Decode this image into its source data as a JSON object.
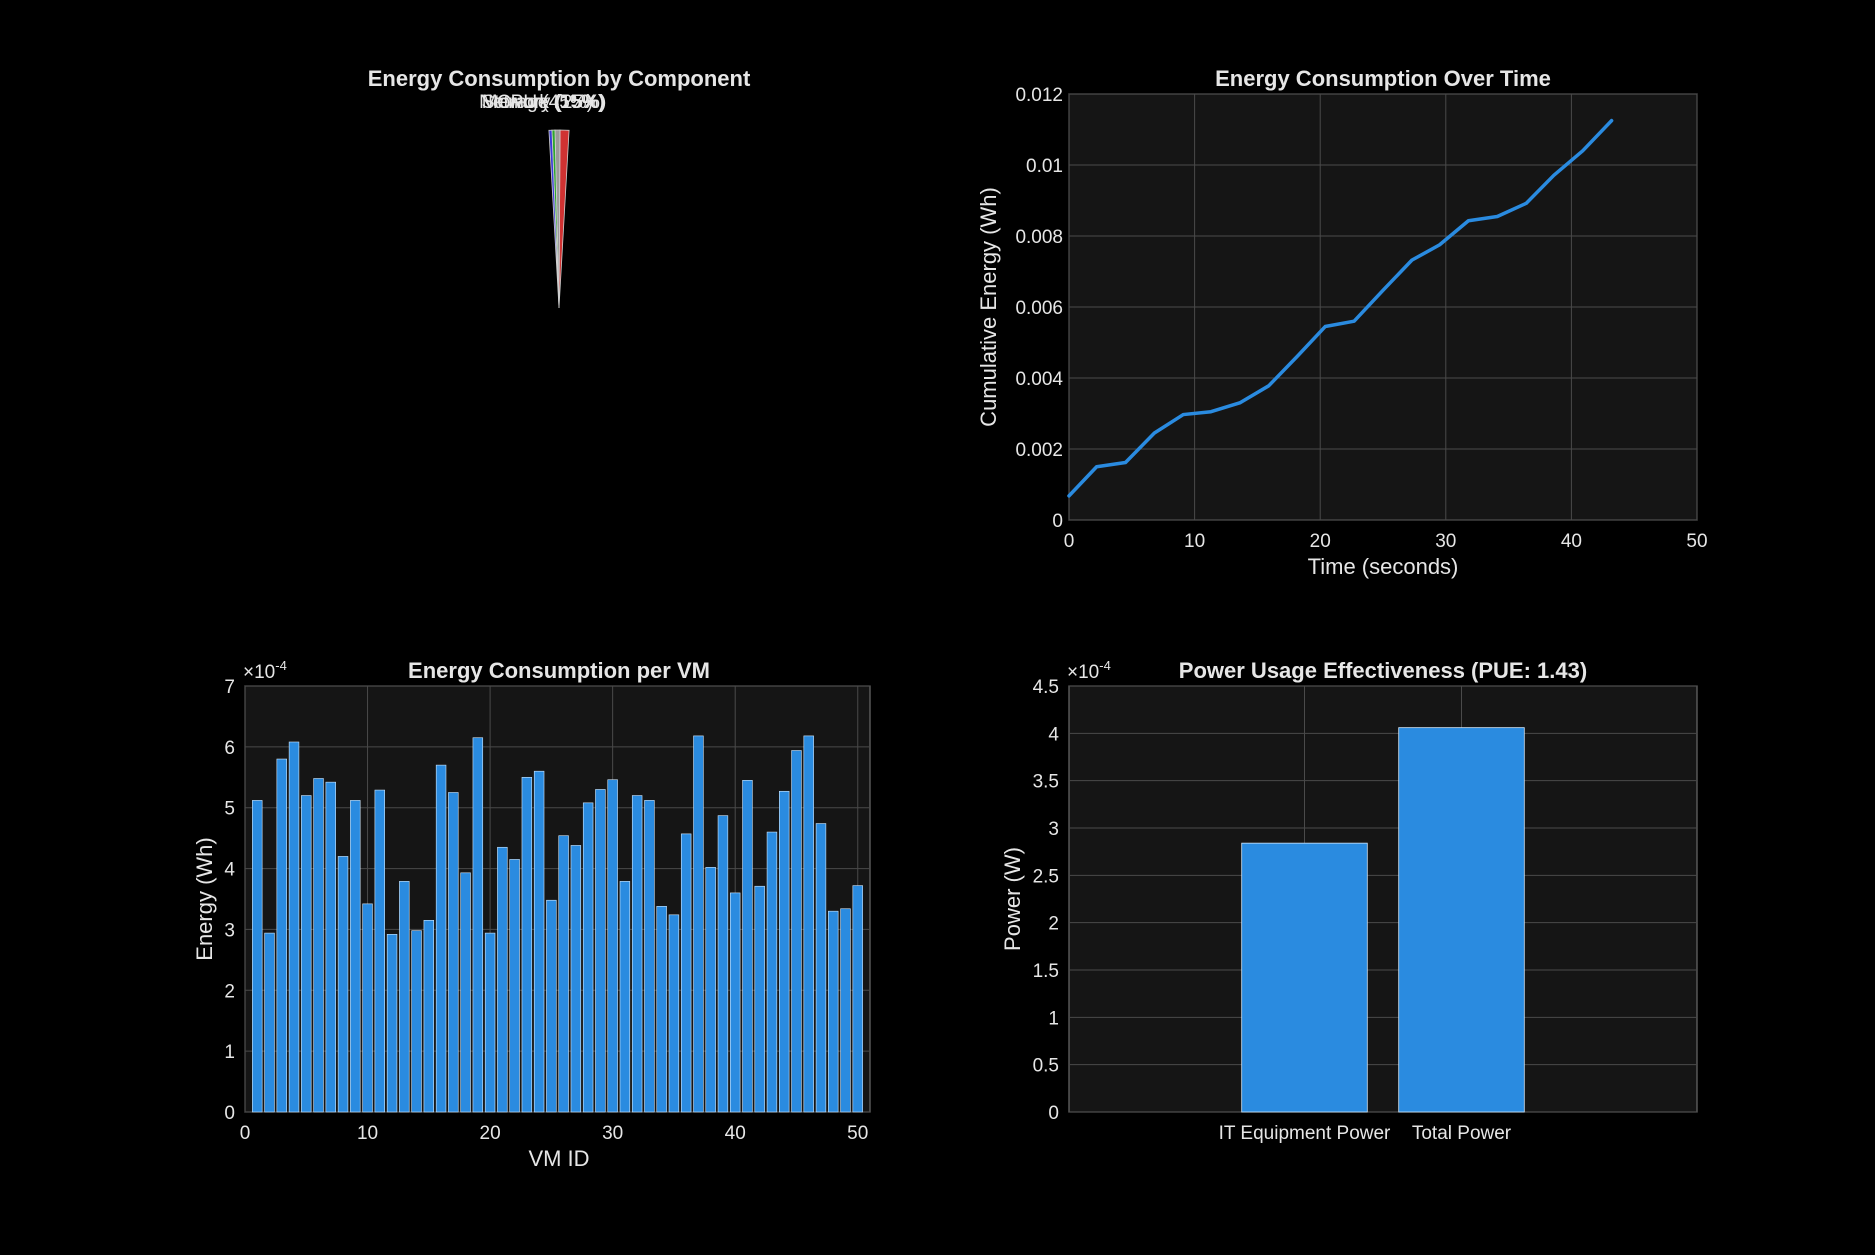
{
  "chart_data": [
    {
      "type": "pie",
      "title": "Energy Consumption by Component",
      "slices": [
        {
          "label": "CPU",
          "percent": 45,
          "color": "#d03232"
        },
        {
          "label": "Memory",
          "percent": 25,
          "color": "#9a9a9a"
        },
        {
          "label": "Storage",
          "percent": 15,
          "color": "#2ea62e"
        },
        {
          "label": "Network",
          "percent": 15,
          "color": "#3a3ad8"
        }
      ],
      "slice_labels_text": [
        "Memory (25%)",
        "CPU (45%)",
        "Storage (15%)",
        "Network (15%)"
      ]
    },
    {
      "type": "line",
      "title": "Energy Consumption Over Time",
      "xlabel": "Time (seconds)",
      "ylabel": "Cumulative Energy (Wh)",
      "xlim": [
        0,
        50
      ],
      "ylim": [
        0,
        0.012
      ],
      "xticks": [
        "0",
        "10",
        "20",
        "30",
        "40",
        "50"
      ],
      "yticks": [
        "0",
        "0.002",
        "0.004",
        "0.006",
        "0.008",
        "0.01",
        "0.012"
      ],
      "grid": true,
      "color": "#2a8be0",
      "x": [
        0,
        2.2,
        4.5,
        6.8,
        9.1,
        11.3,
        13.6,
        15.9,
        18.2,
        20.4,
        22.7,
        25.0,
        27.3,
        29.5,
        31.8,
        34.1,
        36.4,
        38.6,
        40.9,
        43.2
      ],
      "y": [
        0.00068,
        0.0015,
        0.00162,
        0.00245,
        0.00297,
        0.00305,
        0.0033,
        0.00378,
        0.00462,
        0.00545,
        0.0056,
        0.00647,
        0.00732,
        0.00775,
        0.00843,
        0.00855,
        0.00892,
        0.00971,
        0.0104,
        0.01125
      ]
    },
    {
      "type": "bar",
      "title": "Energy Consumption per VM",
      "xlabel": "VM ID",
      "ylabel": "Energy (Wh)",
      "exponent_label": "×10",
      "exponent_power": "-4",
      "xlim": [
        0,
        51
      ],
      "ylim": [
        0,
        7
      ],
      "xticks": [
        "0",
        "10",
        "20",
        "30",
        "40",
        "50"
      ],
      "yticks": [
        "0",
        "1",
        "2",
        "3",
        "4",
        "5",
        "6",
        "7"
      ],
      "grid": true,
      "color": "#2a8be0",
      "categories": [
        1,
        2,
        3,
        4,
        5,
        6,
        7,
        8,
        9,
        10,
        11,
        12,
        13,
        14,
        15,
        16,
        17,
        18,
        19,
        20,
        21,
        22,
        23,
        24,
        25,
        26,
        27,
        28,
        29,
        30,
        31,
        32,
        33,
        34,
        35,
        36,
        37,
        38,
        39,
        40,
        41,
        42,
        43,
        44,
        45,
        46,
        47,
        48,
        49,
        50
      ],
      "values": [
        5.12,
        2.94,
        5.8,
        6.08,
        5.2,
        5.48,
        5.42,
        4.2,
        5.12,
        3.42,
        5.29,
        2.92,
        3.79,
        2.98,
        3.15,
        5.7,
        5.25,
        3.93,
        6.15,
        2.94,
        4.35,
        4.15,
        5.5,
        5.6,
        3.48,
        4.54,
        4.38,
        5.08,
        5.3,
        5.46,
        3.79,
        5.2,
        5.12,
        3.38,
        3.24,
        4.57,
        6.18,
        4.02,
        4.87,
        3.6,
        5.45,
        3.71,
        4.6,
        5.27,
        5.94,
        6.18,
        4.74,
        3.3,
        3.34,
        3.72
      ]
    },
    {
      "type": "bar",
      "title": "Power Usage Effectiveness (PUE: 1.43)",
      "ylabel": "Power (W)",
      "exponent_label": "×10",
      "exponent_power": "-4",
      "ylim": [
        0,
        4.5
      ],
      "yticks": [
        "0",
        "0.5",
        "1",
        "1.5",
        "2",
        "2.5",
        "3",
        "3.5",
        "4",
        "4.5"
      ],
      "grid": true,
      "color": "#2a8be0",
      "categories": [
        "IT Equipment Power",
        "Total Power"
      ],
      "values": [
        2.84,
        4.06
      ]
    }
  ]
}
